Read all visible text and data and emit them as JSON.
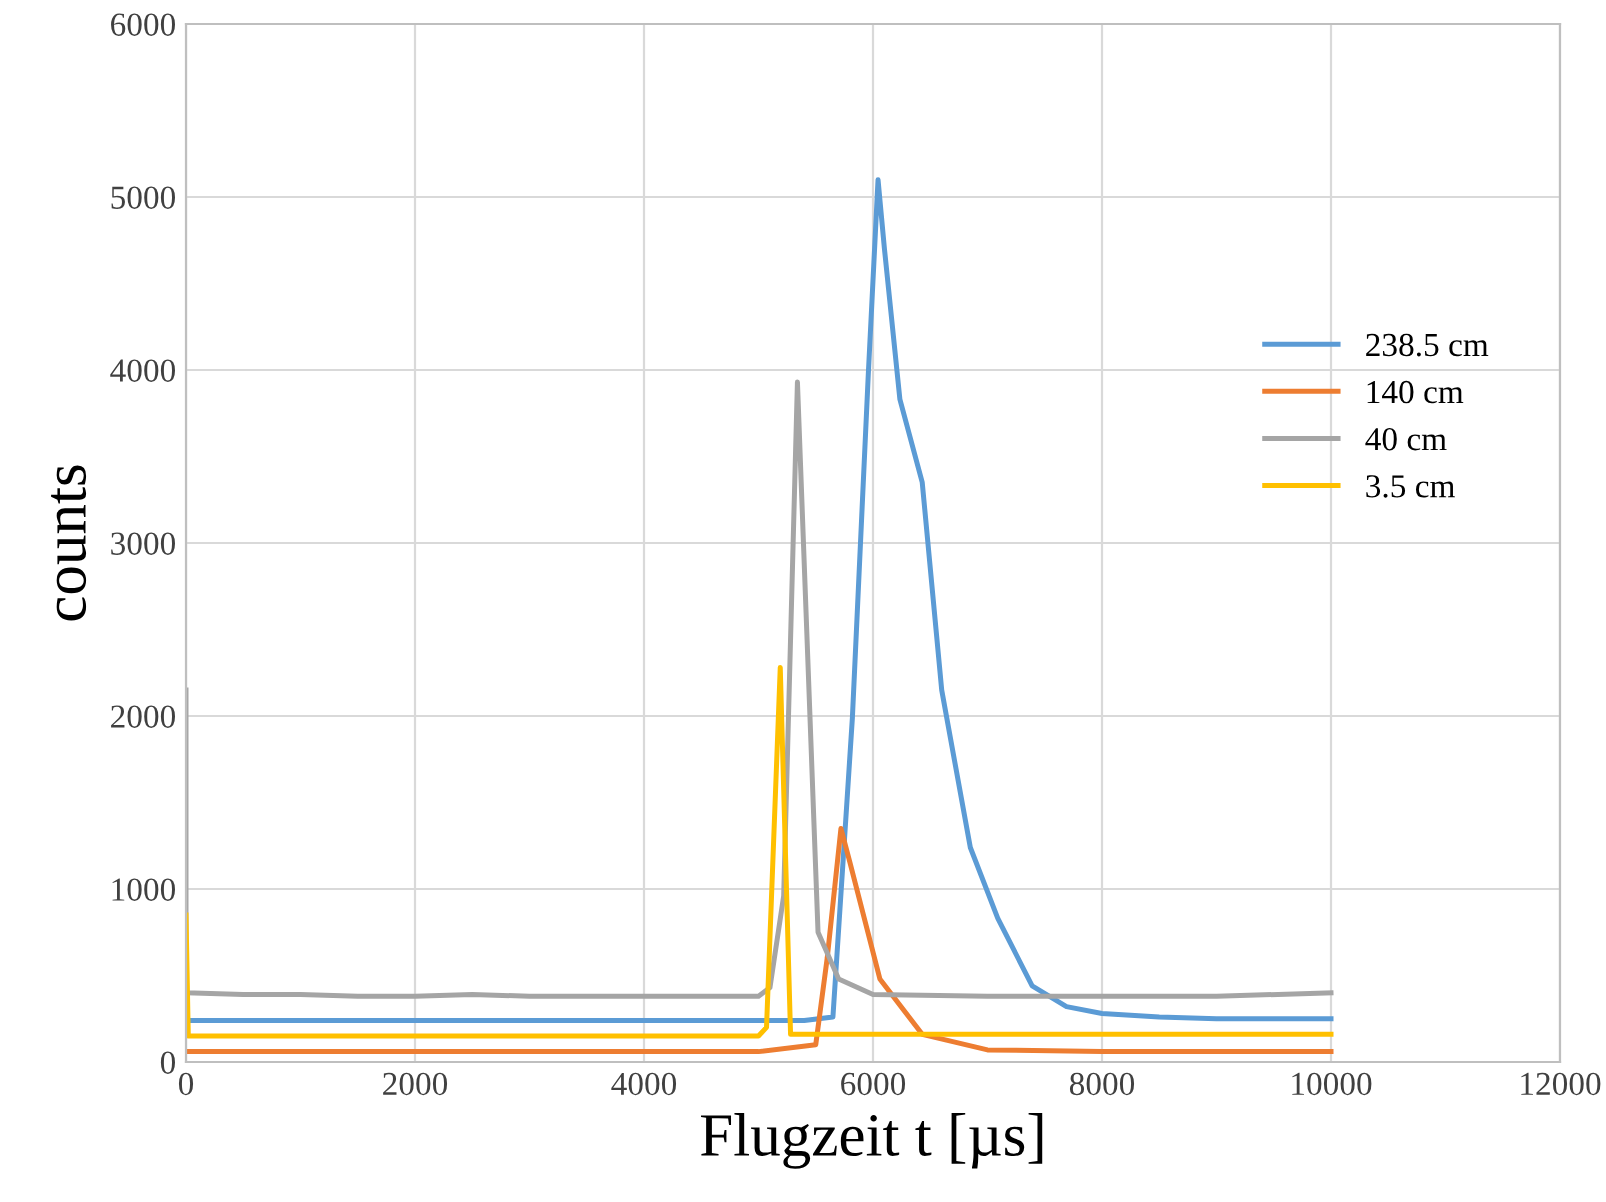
{
  "chart_data": {
    "type": "line",
    "xlabel": "Flugzeit t [µs]",
    "ylabel": "counts",
    "xlim": [
      0,
      12000
    ],
    "ylim": [
      0,
      6000
    ],
    "xticks": [
      0,
      2000,
      4000,
      6000,
      8000,
      10000,
      12000
    ],
    "yticks": [
      0,
      1000,
      2000,
      3000,
      4000,
      5000,
      6000
    ],
    "grid": true,
    "legend": "right",
    "marker": "none",
    "line_style": "solid",
    "series": [
      {
        "name": "238.5 cm",
        "color": "#5b9bd5",
        "x": [
          0,
          500,
          1000,
          1500,
          2000,
          2500,
          3000,
          3500,
          4000,
          4500,
          5000,
          5400,
          5650,
          5820,
          5960,
          6044,
          6100,
          6235,
          6430,
          6600,
          6850,
          7090,
          7390,
          7690,
          8000,
          8500,
          9000,
          9500,
          10000
        ],
        "values": [
          240,
          240,
          240,
          240,
          240,
          240,
          240,
          240,
          240,
          240,
          240,
          240,
          260,
          1990,
          3990,
          5100,
          4700,
          3830,
          3350,
          2150,
          1240,
          830,
          440,
          320,
          280,
          260,
          250,
          250,
          250
        ]
      },
      {
        "name": "140 cm",
        "color": "#ed7d31",
        "x": [
          0,
          1000,
          2000,
          3000,
          4000,
          5000,
          5500,
          5600,
          5720,
          5800,
          6060,
          6430,
          7000,
          8000,
          9000,
          10000
        ],
        "values": [
          60,
          60,
          60,
          60,
          60,
          60,
          100,
          600,
          1350,
          1150,
          480,
          160,
          70,
          60,
          60,
          60
        ]
      },
      {
        "name": "40 cm",
        "color": "#a5a5a5",
        "x": [
          0,
          0,
          500,
          1000,
          1500,
          2000,
          2500,
          3000,
          3500,
          4000,
          4500,
          5000,
          5100,
          5220,
          5340,
          5520,
          5700,
          6000,
          7000,
          8000,
          9000,
          10000
        ],
        "values": [
          2150,
          400,
          390,
          390,
          380,
          380,
          390,
          380,
          380,
          380,
          380,
          380,
          430,
          960,
          3930,
          750,
          480,
          390,
          380,
          380,
          380,
          400
        ]
      },
      {
        "name": "3.5 cm",
        "color": "#ffc000",
        "x": [
          0,
          0,
          20,
          1000,
          2000,
          3000,
          4000,
          5000,
          5070,
          5190,
          5280,
          5400,
          6000,
          7000,
          8000,
          9000,
          10000
        ],
        "values": [
          850,
          850,
          150,
          150,
          150,
          150,
          150,
          150,
          200,
          2280,
          160,
          160,
          160,
          160,
          160,
          160,
          160
        ]
      }
    ]
  }
}
